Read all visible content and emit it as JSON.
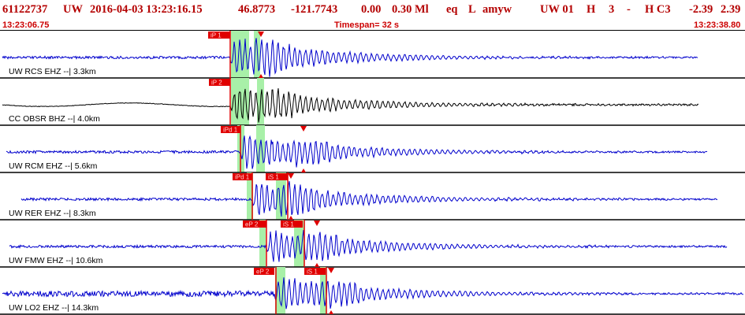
{
  "header": {
    "event_id": "61122737",
    "network": "UW",
    "datetime": "2016-04-03 13:23:16.15",
    "lat": "46.8773",
    "lon": "-121.7743",
    "depth": "0.00",
    "magnitude": "0.30 Ml",
    "etype": "eq",
    "gtype": "L",
    "author": "amyw",
    "source": "UW 01",
    "h_flag": "H",
    "count": "3",
    "dash": "-",
    "h_c3": "H C3",
    "val1": "-2.39",
    "val2": "2.39",
    "start_time": "13:23:06.75",
    "timespan": "Timespan=  32 s",
    "end_time": "13:23:38.80"
  },
  "colors": {
    "trace": "#0000cc",
    "trace_dark": "#000000",
    "header_text": "#b40000",
    "pick_marker": "#e00000",
    "window_fill": "#a8f0a8"
  },
  "panels": [
    {
      "label": "UW RCS EHZ --| 3.3km",
      "trace_color": "blue",
      "picks": [
        {
          "label": "iP 1"
        }
      ],
      "arrival_marker": true
    },
    {
      "label": "CC OBSR BHZ --| 4.0km",
      "trace_color": "black",
      "picks": [
        {
          "label": "iP 2"
        }
      ],
      "arrival_marker": false
    },
    {
      "label": "UW RCM EHZ --| 5.6km",
      "trace_color": "blue",
      "picks": [
        {
          "label": "iPd 1"
        }
      ],
      "arrival_marker": true
    },
    {
      "label": "UW RER EHZ --| 8.3km",
      "trace_color": "blue",
      "picks": [
        {
          "label": "iPd 1"
        },
        {
          "label": "iS 1"
        }
      ],
      "arrival_marker": true
    },
    {
      "label": "UW FMW EHZ --| 10.6km",
      "trace_color": "blue",
      "picks": [
        {
          "label": "eP 2"
        },
        {
          "label": "iS 1"
        }
      ],
      "arrival_marker": true
    },
    {
      "label": "UW LO2 EHZ --| 14.3km",
      "trace_color": "blue",
      "picks": [
        {
          "label": "eP 2"
        },
        {
          "label": "iS 1"
        }
      ],
      "arrival_marker": true
    }
  ]
}
